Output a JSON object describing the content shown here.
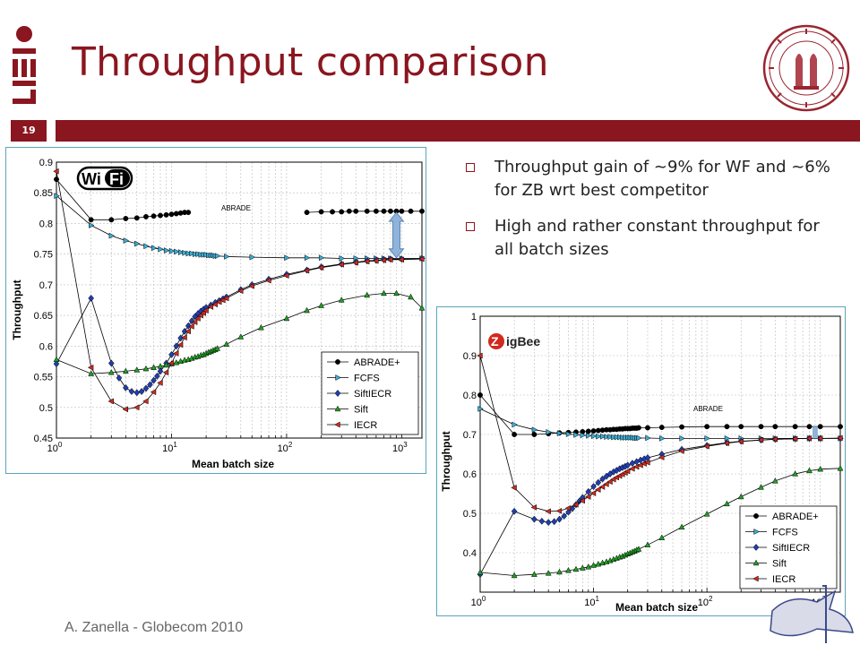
{
  "slide": {
    "title": "Throughput comparison",
    "number": "19",
    "footer": "A. Zanella - Globecom 2010",
    "bullets": [
      "Throughput gain of ~9% for WF and ~6% for ZB wrt best competitor",
      "High and rather constant throughput for all batch sizes"
    ]
  },
  "chart_data": [
    {
      "type": "line",
      "badge": "Wi Fi",
      "annotation": "ABRADE",
      "xlabel": "Mean batch size",
      "ylabel": "Throughput",
      "xscale": "log",
      "xlim": [
        1,
        1500
      ],
      "ylim": [
        0.45,
        0.9
      ],
      "yticks": [
        0.45,
        0.5,
        0.55,
        0.6,
        0.65,
        0.7,
        0.75,
        0.8,
        0.85,
        0.9
      ],
      "ytick_labels": [
        "0.45",
        "0.5",
        "0.55",
        "0.6",
        "0.65",
        "0.7",
        "0.75",
        "0.8",
        "0.85",
        "0.9"
      ],
      "xtick_labels": [
        "10^0",
        "10^1",
        "10^2",
        "10^3"
      ],
      "grid": true,
      "legend_position": "bottom-right",
      "series": [
        {
          "name": "ABRADE+",
          "marker": "circle",
          "color": "#000000",
          "x": [
            1,
            2,
            3,
            4,
            5,
            6,
            7,
            8,
            9,
            10,
            11,
            12,
            13,
            14,
            150,
            200,
            250,
            300,
            350,
            400,
            500,
            600,
            700,
            800,
            900,
            1000,
            1200,
            1500
          ],
          "y": [
            0.872,
            0.806,
            0.806,
            0.808,
            0.809,
            0.811,
            0.812,
            0.813,
            0.814,
            0.815,
            0.816,
            0.817,
            0.818,
            0.818,
            0.818,
            0.819,
            0.819,
            0.819,
            0.82,
            0.82,
            0.82,
            0.82,
            0.82,
            0.82,
            0.82,
            0.82,
            0.82,
            0.82
          ]
        },
        {
          "name": "FCFS",
          "marker": "triangle-right",
          "color": "#3aaed6",
          "x": [
            1,
            2,
            3,
            4,
            5,
            6,
            7,
            8,
            9,
            10,
            11,
            12,
            13,
            14,
            15,
            16,
            17,
            18,
            19,
            20,
            21,
            22,
            23,
            24,
            25,
            30,
            50,
            100,
            150,
            200,
            300,
            400,
            500,
            600,
            700,
            800,
            1000,
            1500
          ],
          "y": [
            0.845,
            0.797,
            0.78,
            0.772,
            0.767,
            0.763,
            0.76,
            0.758,
            0.756,
            0.755,
            0.754,
            0.753,
            0.752,
            0.751,
            0.751,
            0.75,
            0.75,
            0.749,
            0.749,
            0.749,
            0.748,
            0.748,
            0.748,
            0.747,
            0.747,
            0.746,
            0.745,
            0.744,
            0.744,
            0.744,
            0.743,
            0.743,
            0.743,
            0.743,
            0.743,
            0.743,
            0.743,
            0.743
          ]
        },
        {
          "name": "SiftIECR",
          "marker": "diamond",
          "color": "#1f3fb0",
          "x": [
            1,
            2,
            3,
            3.5,
            4,
            4.5,
            5,
            5.5,
            6,
            6.5,
            7,
            7.5,
            8,
            9,
            10,
            11,
            12,
            13,
            14,
            15,
            16,
            17,
            18,
            19,
            20,
            22,
            24,
            26,
            28,
            30,
            40,
            50,
            70,
            100,
            150,
            200,
            300,
            400,
            500,
            600,
            700,
            800,
            1000,
            1500
          ],
          "y": [
            0.571,
            0.678,
            0.572,
            0.548,
            0.532,
            0.526,
            0.524,
            0.526,
            0.531,
            0.537,
            0.544,
            0.551,
            0.559,
            0.572,
            0.586,
            0.6,
            0.613,
            0.624,
            0.633,
            0.641,
            0.648,
            0.653,
            0.657,
            0.66,
            0.663,
            0.667,
            0.671,
            0.674,
            0.677,
            0.68,
            0.692,
            0.7,
            0.709,
            0.717,
            0.724,
            0.729,
            0.734,
            0.737,
            0.739,
            0.74,
            0.741,
            0.742,
            0.742,
            0.743
          ]
        },
        {
          "name": "Sift",
          "marker": "triangle-up",
          "color": "#1fa023",
          "x": [
            1,
            2,
            3,
            4,
            5,
            6,
            7,
            8,
            9,
            10,
            11,
            12,
            13,
            14,
            15,
            16,
            17,
            18,
            19,
            20,
            21,
            22,
            23,
            24,
            25,
            30,
            40,
            60,
            100,
            150,
            200,
            300,
            500,
            700,
            900,
            1200,
            1500
          ],
          "y": [
            0.578,
            0.555,
            0.557,
            0.559,
            0.561,
            0.563,
            0.565,
            0.567,
            0.569,
            0.571,
            0.573,
            0.575,
            0.577,
            0.578,
            0.58,
            0.582,
            0.583,
            0.585,
            0.586,
            0.588,
            0.59,
            0.591,
            0.593,
            0.594,
            0.596,
            0.603,
            0.615,
            0.63,
            0.645,
            0.658,
            0.666,
            0.675,
            0.683,
            0.686,
            0.686,
            0.68,
            0.662
          ]
        },
        {
          "name": "IECR",
          "marker": "triangle-left",
          "color": "#d02a1e",
          "x": [
            1,
            2,
            3,
            4,
            5,
            6,
            7,
            8,
            9,
            10,
            11,
            12,
            13,
            14,
            15,
            16,
            17,
            18,
            19,
            20,
            22,
            24,
            26,
            28,
            30,
            40,
            50,
            70,
            100,
            150,
            200,
            300,
            400,
            500,
            600,
            700,
            800,
            1000,
            1500
          ],
          "y": [
            0.885,
            0.565,
            0.51,
            0.497,
            0.5,
            0.51,
            0.525,
            0.54,
            0.557,
            0.572,
            0.588,
            0.602,
            0.614,
            0.624,
            0.632,
            0.639,
            0.645,
            0.65,
            0.654,
            0.658,
            0.664,
            0.668,
            0.672,
            0.675,
            0.678,
            0.69,
            0.698,
            0.707,
            0.715,
            0.723,
            0.728,
            0.733,
            0.736,
            0.738,
            0.739,
            0.74,
            0.741,
            0.741,
            0.742
          ]
        }
      ]
    },
    {
      "type": "line",
      "badge": "ZigBee",
      "annotation": "ABRADE",
      "xlabel": "Mean batch size",
      "ylabel": "Throughput",
      "xscale": "log",
      "xlim": [
        1,
        1500
      ],
      "ylim": [
        0.3,
        1.0
      ],
      "yticks": [
        0.4,
        0.5,
        0.6,
        0.7,
        0.8,
        0.9,
        1.0
      ],
      "ytick_labels": [
        "0.4",
        "0.5",
        "0.6",
        "0.7",
        "0.8",
        "0.9",
        "1"
      ],
      "xtick_labels": [
        "10^0",
        "10^1",
        "10^2",
        "10^3"
      ],
      "grid": true,
      "legend_position": "bottom-right",
      "series": [
        {
          "name": "ABRADE+",
          "marker": "circle",
          "color": "#000000",
          "x": [
            1,
            2,
            3,
            4,
            5,
            6,
            7,
            8,
            9,
            10,
            11,
            12,
            13,
            14,
            15,
            16,
            17,
            18,
            19,
            20,
            21,
            22,
            23,
            24,
            25,
            30,
            40,
            60,
            100,
            150,
            200,
            300,
            400,
            600,
            800,
            1000,
            1500
          ],
          "y": [
            0.8,
            0.7,
            0.7,
            0.702,
            0.704,
            0.705,
            0.706,
            0.707,
            0.708,
            0.709,
            0.71,
            0.711,
            0.712,
            0.712,
            0.713,
            0.713,
            0.714,
            0.714,
            0.715,
            0.715,
            0.715,
            0.716,
            0.716,
            0.716,
            0.717,
            0.717,
            0.718,
            0.719,
            0.72,
            0.72,
            0.72,
            0.72,
            0.72,
            0.72,
            0.72,
            0.72,
            0.72
          ]
        },
        {
          "name": "FCFS",
          "marker": "triangle-right",
          "color": "#3aaed6",
          "x": [
            1,
            2,
            3,
            4,
            5,
            6,
            7,
            8,
            9,
            10,
            11,
            12,
            13,
            14,
            15,
            16,
            17,
            18,
            19,
            20,
            21,
            22,
            23,
            24,
            25,
            30,
            40,
            60,
            100,
            150,
            200,
            300,
            400,
            600,
            800,
            1000,
            1500
          ],
          "y": [
            0.765,
            0.725,
            0.712,
            0.706,
            0.703,
            0.701,
            0.699,
            0.698,
            0.697,
            0.696,
            0.695,
            0.695,
            0.694,
            0.694,
            0.693,
            0.693,
            0.693,
            0.692,
            0.692,
            0.692,
            0.692,
            0.692,
            0.691,
            0.691,
            0.691,
            0.691,
            0.69,
            0.69,
            0.69,
            0.69,
            0.69,
            0.69,
            0.69,
            0.69,
            0.69,
            0.69,
            0.69
          ]
        },
        {
          "name": "SiftIECR",
          "marker": "diamond",
          "color": "#1f3fb0",
          "x": [
            1,
            2,
            3,
            3.5,
            4,
            4.5,
            5,
            5.5,
            6,
            6.5,
            7,
            7.5,
            8,
            9,
            10,
            11,
            12,
            13,
            14,
            15,
            16,
            17,
            18,
            19,
            20,
            22,
            24,
            26,
            28,
            30,
            40,
            60,
            100,
            150,
            200,
            300,
            400,
            600,
            800,
            1000,
            1500
          ],
          "y": [
            0.345,
            0.505,
            0.485,
            0.48,
            0.477,
            0.479,
            0.485,
            0.493,
            0.503,
            0.512,
            0.522,
            0.531,
            0.54,
            0.555,
            0.568,
            0.578,
            0.587,
            0.594,
            0.6,
            0.605,
            0.609,
            0.613,
            0.616,
            0.619,
            0.622,
            0.627,
            0.631,
            0.635,
            0.638,
            0.641,
            0.65,
            0.662,
            0.672,
            0.679,
            0.683,
            0.686,
            0.688,
            0.689,
            0.69,
            0.69,
            0.69
          ]
        },
        {
          "name": "Sift",
          "marker": "triangle-up",
          "color": "#1fa023",
          "x": [
            1,
            2,
            3,
            4,
            5,
            6,
            7,
            8,
            9,
            10,
            11,
            12,
            13,
            14,
            15,
            16,
            17,
            18,
            19,
            20,
            21,
            22,
            23,
            24,
            25,
            30,
            40,
            60,
            100,
            150,
            200,
            300,
            400,
            600,
            800,
            1000,
            1500
          ],
          "y": [
            0.35,
            0.342,
            0.345,
            0.348,
            0.351,
            0.355,
            0.358,
            0.361,
            0.364,
            0.368,
            0.371,
            0.374,
            0.377,
            0.38,
            0.383,
            0.386,
            0.389,
            0.391,
            0.394,
            0.397,
            0.399,
            0.402,
            0.404,
            0.407,
            0.409,
            0.42,
            0.438,
            0.465,
            0.498,
            0.524,
            0.542,
            0.566,
            0.582,
            0.6,
            0.608,
            0.612,
            0.614
          ]
        },
        {
          "name": "IECR",
          "marker": "triangle-left",
          "color": "#d02a1e",
          "x": [
            1,
            2,
            3,
            4,
            5,
            6,
            7,
            8,
            9,
            10,
            11,
            12,
            13,
            14,
            15,
            16,
            17,
            18,
            19,
            20,
            22,
            24,
            26,
            28,
            30,
            40,
            60,
            100,
            150,
            200,
            300,
            400,
            600,
            800,
            1000,
            1500
          ],
          "y": [
            0.9,
            0.565,
            0.515,
            0.505,
            0.506,
            0.513,
            0.522,
            0.532,
            0.542,
            0.551,
            0.56,
            0.567,
            0.574,
            0.58,
            0.586,
            0.591,
            0.595,
            0.599,
            0.603,
            0.607,
            0.613,
            0.618,
            0.622,
            0.626,
            0.629,
            0.642,
            0.658,
            0.67,
            0.678,
            0.682,
            0.686,
            0.688,
            0.689,
            0.69,
            0.69,
            0.691
          ]
        }
      ]
    }
  ]
}
